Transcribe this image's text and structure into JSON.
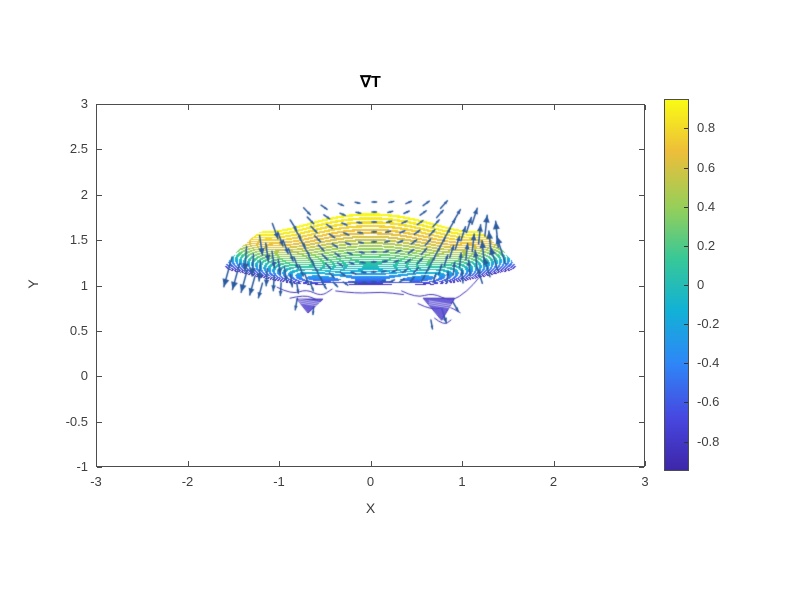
{
  "figure": {
    "background": "#ffffff"
  },
  "chart_data": {
    "type": "contour-quiver",
    "title": "∇T",
    "xlabel": "X",
    "ylabel": "Y",
    "xlim": [
      -3,
      3
    ],
    "ylim": [
      -1,
      3
    ],
    "xticks": [
      "-3",
      "-2",
      "-1",
      "0",
      "1",
      "2",
      "3"
    ],
    "xtick_values": [
      -3,
      -2,
      -1,
      0,
      1,
      2,
      3
    ],
    "yticks": [
      "3",
      "2.5",
      "2",
      "1.5",
      "1",
      "0.5",
      "0",
      "-0.5",
      "-1"
    ],
    "ytick_values": [
      3,
      2.5,
      2,
      1.5,
      1,
      0.5,
      0,
      -0.5,
      -1
    ],
    "grid": false,
    "axis_color": "#4d4d4d",
    "colorbar": {
      "position": "right",
      "vmin": -0.95,
      "vmax": 0.95,
      "ticks": [
        "0.8",
        "0.6",
        "0.4",
        "0.2",
        "0",
        "-0.2",
        "-0.4",
        "-0.6",
        "-0.8"
      ],
      "tick_values": [
        0.8,
        0.6,
        0.4,
        0.2,
        0,
        -0.2,
        -0.4,
        -0.6,
        -0.8
      ],
      "colormap": "parula",
      "stops": [
        {
          "p": 0.0,
          "c": "#3E26A8"
        },
        {
          "p": 0.14,
          "c": "#4747E0"
        },
        {
          "p": 0.29,
          "c": "#2E87F7"
        },
        {
          "p": 0.43,
          "c": "#12B1D6"
        },
        {
          "p": 0.57,
          "c": "#37C897"
        },
        {
          "p": 0.71,
          "c": "#96CF59"
        },
        {
          "p": 0.86,
          "c": "#EDBE3A"
        },
        {
          "p": 1.0,
          "c": "#F9FB14"
        }
      ]
    },
    "field": {
      "description": "Dense contour lines of T over an annular sector between the line y=1 and the circle r=2, theta 37-143 deg; contour values span about -0.95 to 0.95 (yellow at outer top-center, purple near inner edge and wing tips)",
      "theta_min_deg": 37,
      "theta_max_deg": 143,
      "r_outer": 2.0,
      "amp": 1.18,
      "shape_exp": 0.45,
      "tip_coef": 1.95,
      "tip_exp": 6,
      "value_clip": 0.95,
      "contour_step": 0.055,
      "line_fraction": 0.32
    },
    "quiver": {
      "description": "Gradient arrows: point downward at the left wing, horizontal (rightward) at center, upward at the right wing; longest at the wings",
      "color": "#2B5A9E",
      "theta_start_deg": 40,
      "theta_end_deg": 140.5,
      "theta_step_deg": 5.5,
      "r_margin": 0.04,
      "r_step": 0.11,
      "dir_coef": 2.15,
      "len_base": 0.05,
      "len_wing": 0.34
    },
    "extra_arrows": [
      {
        "x": -0.8,
        "y": 0.86,
        "angle_deg": -100,
        "len": 0.13
      },
      {
        "x": -0.62,
        "y": 0.78,
        "angle_deg": -95,
        "len": 0.1
      },
      {
        "x": 0.78,
        "y": 0.74,
        "angle_deg": -72,
        "len": 0.16
      },
      {
        "x": 0.9,
        "y": 0.82,
        "angle_deg": -60,
        "len": 0.12
      },
      {
        "x": 0.66,
        "y": 0.62,
        "angle_deg": -80,
        "len": 0.1
      }
    ],
    "squiggles": {
      "color": "#4034B8",
      "paths": [
        [
          [
            -1.02,
            0.98
          ],
          [
            -0.86,
            0.9
          ],
          [
            -0.7,
            0.96
          ],
          [
            -0.54,
            0.88
          ],
          [
            -0.42,
            0.96
          ]
        ],
        [
          [
            -0.88,
            0.86
          ],
          [
            -0.72,
            0.9
          ],
          [
            -0.58,
            0.84
          ]
        ],
        [
          [
            -0.38,
            0.94
          ],
          [
            -0.15,
            0.91
          ],
          [
            0.12,
            0.93
          ],
          [
            0.36,
            0.9
          ]
        ],
        [
          [
            0.34,
            0.94
          ],
          [
            0.5,
            0.86
          ],
          [
            0.68,
            0.92
          ],
          [
            0.88,
            0.82
          ],
          [
            1.06,
            0.94
          ],
          [
            1.18,
            1.08
          ]
        ],
        [
          [
            0.52,
            0.8
          ],
          [
            0.68,
            0.72
          ],
          [
            0.84,
            0.78
          ],
          [
            0.98,
            0.7
          ]
        ],
        [
          [
            0.7,
            0.64
          ],
          [
            0.8,
            0.56
          ],
          [
            0.88,
            0.62
          ]
        ]
      ]
    },
    "patches": {
      "color": "rgba(86,72,210,0.88)",
      "triangles": [
        [
          [
            -0.8,
            0.85
          ],
          [
            -0.52,
            0.85
          ],
          [
            -0.68,
            0.7
          ]
        ],
        [
          [
            0.58,
            0.86
          ],
          [
            0.92,
            0.86
          ],
          [
            0.78,
            0.62
          ]
        ]
      ]
    }
  }
}
